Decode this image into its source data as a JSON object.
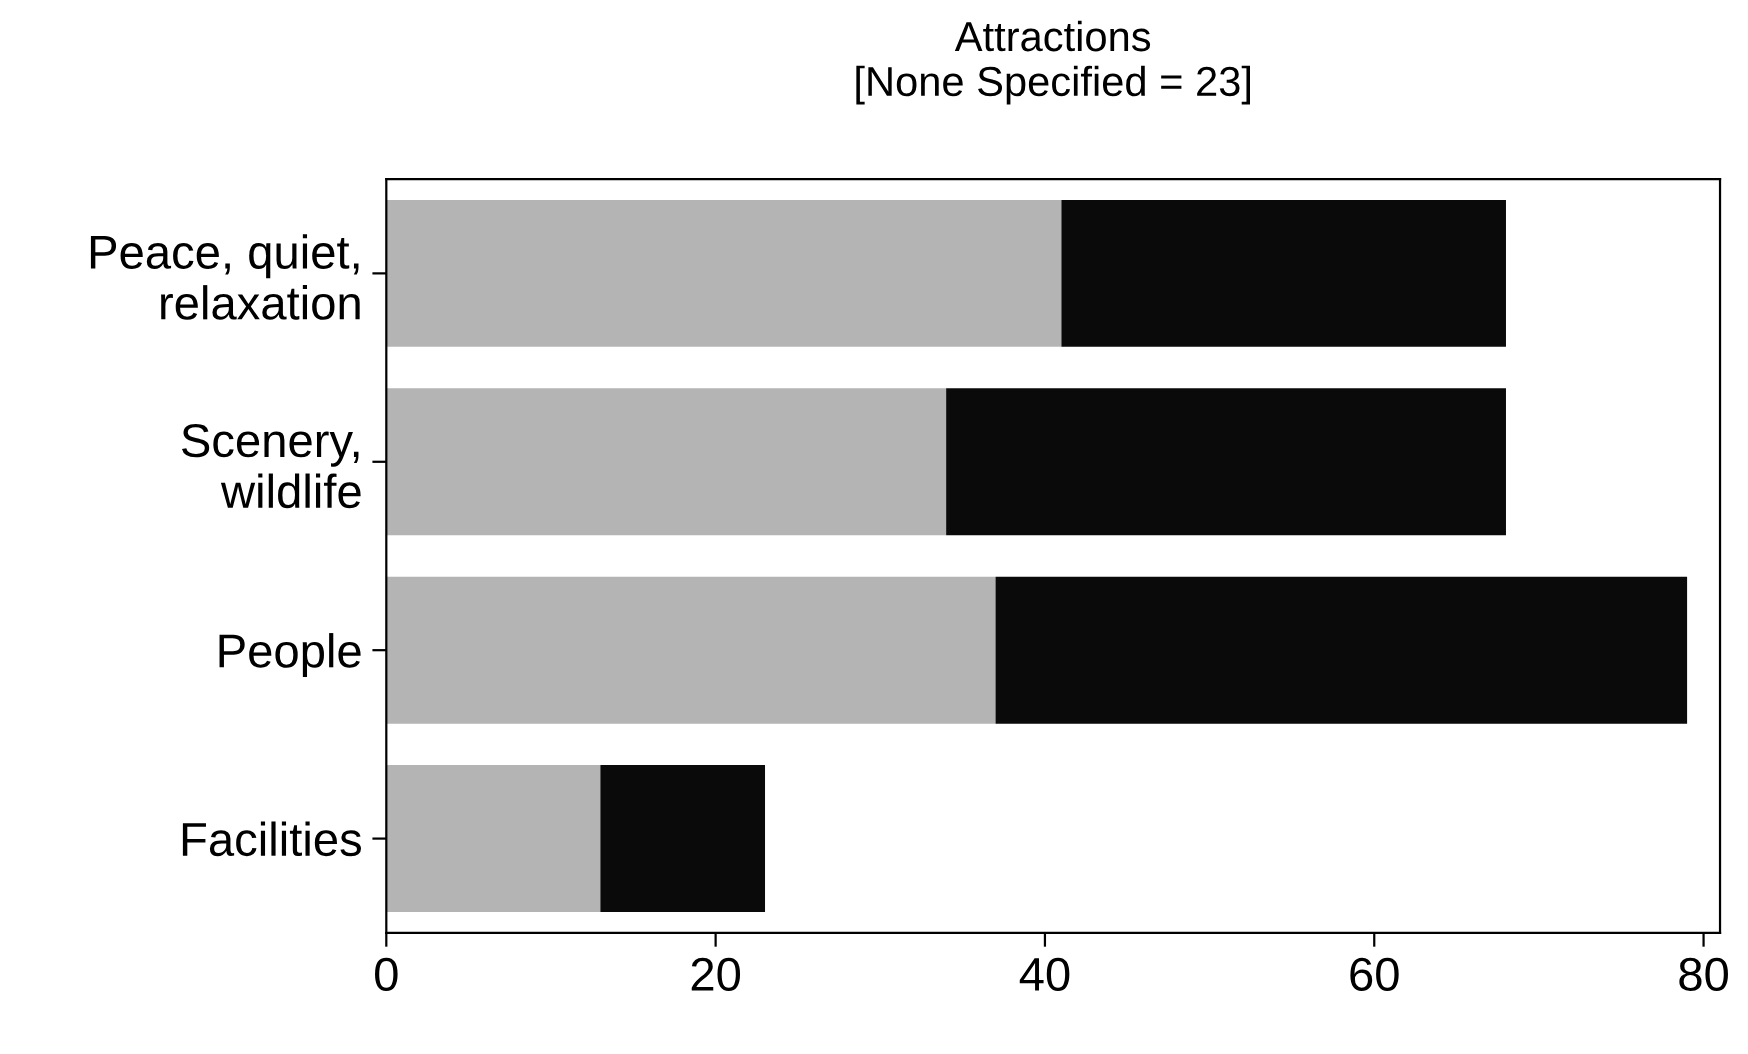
{
  "chart_data": {
    "type": "bar",
    "orientation": "horizontal",
    "stacked": true,
    "title": "Attractions\n[None Specified = 23]",
    "categories": [
      "Peace, quiet,\nrelaxation",
      "Scenery,\nwildlife",
      "People",
      "Facilities"
    ],
    "series": [
      {
        "color": "#b4b4b4",
        "values": [
          41,
          34,
          37,
          13
        ]
      },
      {
        "color": "#0a0a0a",
        "values": [
          27,
          34,
          42,
          10
        ]
      }
    ],
    "xlim": [
      0,
      81
    ],
    "xticks": [
      0,
      20,
      40,
      60,
      80
    ],
    "grid": false,
    "legend": false
  }
}
